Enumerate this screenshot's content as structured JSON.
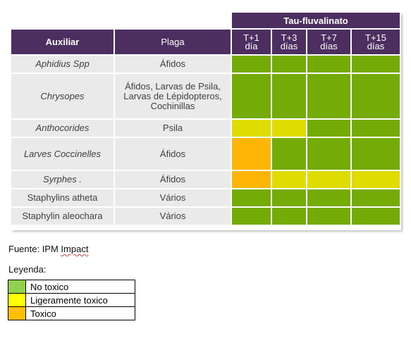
{
  "table": {
    "super_header": "Tau-fluvalinato",
    "col_auxiliar": "Auxiliar",
    "col_plaga": "Plaga",
    "time_cols": [
      {
        "line1": "T+1",
        "line2": "día"
      },
      {
        "line1": "T+3",
        "line2": "días"
      },
      {
        "line1": "T+7",
        "line2": "días"
      },
      {
        "line1": "T+15",
        "line2": "días"
      }
    ],
    "rows": [
      {
        "auxiliar": "Aphidius Spp",
        "italic": true,
        "plaga": "Áfidos",
        "tox": [
          "no",
          "no",
          "no",
          "no"
        ]
      },
      {
        "auxiliar": "Chrysopes",
        "italic": true,
        "plaga": "Áfidos, Larvas de Psila, Larvas de Lépidopteros, Cochinillas",
        "tox": [
          "no",
          "no",
          "no",
          "no"
        ]
      },
      {
        "auxiliar": "Anthocorides",
        "italic": true,
        "plaga": "Psila",
        "tox": [
          "lig",
          "lig",
          "no",
          "no"
        ]
      },
      {
        "auxiliar": "Larves Coccinelles",
        "italic": true,
        "plaga": "Áfidos",
        "tox": [
          "tox",
          "no",
          "no",
          "no"
        ]
      },
      {
        "auxiliar": "Syrphes .",
        "italic": true,
        "plaga": "Áfidos",
        "tox": [
          "tox",
          "lig",
          "lig",
          "lig"
        ]
      },
      {
        "auxiliar": "Staphylins atheta",
        "italic": false,
        "plaga": "Vários",
        "tox": [
          "no",
          "no",
          "no",
          "no"
        ]
      },
      {
        "auxiliar": "Staphylin  aleochara",
        "italic": false,
        "plaga": "Vários",
        "tox": [
          "no",
          "no",
          "no",
          "no"
        ]
      }
    ]
  },
  "source": {
    "prefix": "Fuente: IPM ",
    "brand": "Impact"
  },
  "legend": {
    "title": "Leyenda:",
    "items": [
      {
        "key": "no",
        "label": "No toxico",
        "color": "#92d050"
      },
      {
        "key": "lig",
        "label": "Ligeramente toxico",
        "color": "#ffff00"
      },
      {
        "key": "tox",
        "label": "Toxico",
        "color": "#ffc000"
      }
    ]
  },
  "table_colors": {
    "no": "#74ab06",
    "lig": "#dedc00",
    "tox": "#fdb605",
    "header": "#4c2e61",
    "label_bg": "#eaeaea"
  }
}
